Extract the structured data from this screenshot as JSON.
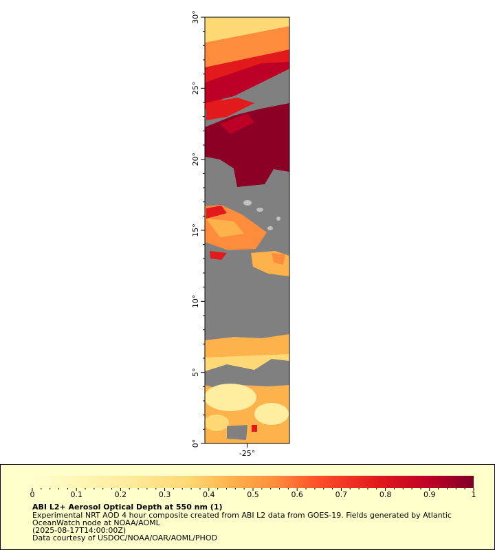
{
  "map": {
    "ylim": [
      0,
      30
    ],
    "xlim": [
      -28,
      -22
    ],
    "yticks": [
      {
        "value": 0,
        "label": "0°"
      },
      {
        "value": 5,
        "label": "5°"
      },
      {
        "value": 10,
        "label": "10°"
      },
      {
        "value": 15,
        "label": "15°"
      },
      {
        "value": 20,
        "label": "20°"
      },
      {
        "value": 25,
        "label": "25°"
      },
      {
        "value": 30,
        "label": "30°"
      }
    ],
    "xticks": [
      {
        "value": -25,
        "label": "-25°"
      }
    ]
  },
  "colorbar": {
    "range": [
      0,
      1
    ],
    "ticks": [
      0,
      0.1,
      0.2,
      0.3,
      0.4,
      0.5,
      0.6,
      0.7,
      0.8,
      0.9,
      1
    ]
  },
  "legend": {
    "title": "ABI L2+ Aerosol Optical Depth at 550 nm (1)",
    "lines": [
      "Experimental NRT AOD 4 hour composite created from ABI L2 data from GOES-19. Fields generated by Atlantic",
      "OceanWatch node at NOAA/AOML",
      "(2025-08-17T14:00:00Z)",
      "Data courtesy of USDOC/NOAA/OAR/AOML/PHOD"
    ]
  }
}
